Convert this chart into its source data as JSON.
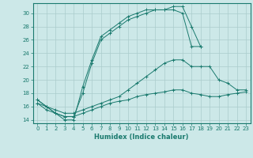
{
  "xlabel": "Humidex (Indice chaleur)",
  "background_color": "#cce8e8",
  "line_color": "#1a7a6e",
  "grid_color": "#aacccc",
  "xlim": [
    -0.5,
    23.5
  ],
  "ylim": [
    13.5,
    31.5
  ],
  "yticks": [
    14,
    16,
    18,
    20,
    22,
    24,
    26,
    28,
    30
  ],
  "xticks": [
    0,
    1,
    2,
    3,
    4,
    5,
    6,
    7,
    8,
    9,
    10,
    11,
    12,
    13,
    14,
    15,
    16,
    17,
    18,
    19,
    20,
    21,
    22,
    23
  ],
  "series": [
    {
      "x": [
        0,
        1,
        2,
        3,
        4,
        5,
        6,
        7,
        8,
        9,
        10,
        11,
        12,
        13,
        14,
        15,
        16,
        17,
        18
      ],
      "y": [
        17,
        16,
        15,
        14,
        14,
        19,
        23,
        26.5,
        27.5,
        28.5,
        29.5,
        30,
        30.5,
        30.5,
        30.5,
        31,
        31,
        28,
        25
      ]
    },
    {
      "x": [
        0,
        1,
        2,
        3,
        4,
        5,
        6,
        7,
        8,
        9,
        10,
        11,
        12,
        13,
        14,
        15,
        16,
        17,
        18
      ],
      "y": [
        17,
        16,
        15,
        14.5,
        14.5,
        18,
        22.5,
        26,
        27,
        28,
        29,
        29.5,
        30,
        30.5,
        30.5,
        30.5,
        30,
        25,
        25
      ]
    },
    {
      "x": [
        0,
        1,
        2,
        3,
        4,
        5,
        6,
        7,
        8,
        9,
        10,
        11,
        12,
        13,
        14,
        15,
        16,
        17,
        18,
        19,
        20,
        21,
        22,
        23
      ],
      "y": [
        16.5,
        16,
        15.5,
        15,
        15,
        15.5,
        16,
        16.5,
        17,
        17.5,
        18.5,
        19.5,
        20.5,
        21.5,
        22.5,
        23,
        23,
        22,
        22,
        22,
        20,
        19.5,
        18.5,
        18.5
      ]
    },
    {
      "x": [
        0,
        1,
        2,
        3,
        4,
        5,
        6,
        7,
        8,
        9,
        10,
        11,
        12,
        13,
        14,
        15,
        16,
        17,
        18,
        19,
        20,
        21,
        22,
        23
      ],
      "y": [
        16.5,
        15.5,
        15,
        14.5,
        14.5,
        15,
        15.5,
        16,
        16.5,
        16.8,
        17,
        17.5,
        17.8,
        18,
        18.2,
        18.5,
        18.5,
        18,
        17.8,
        17.5,
        17.5,
        17.8,
        18,
        18.2
      ]
    }
  ]
}
